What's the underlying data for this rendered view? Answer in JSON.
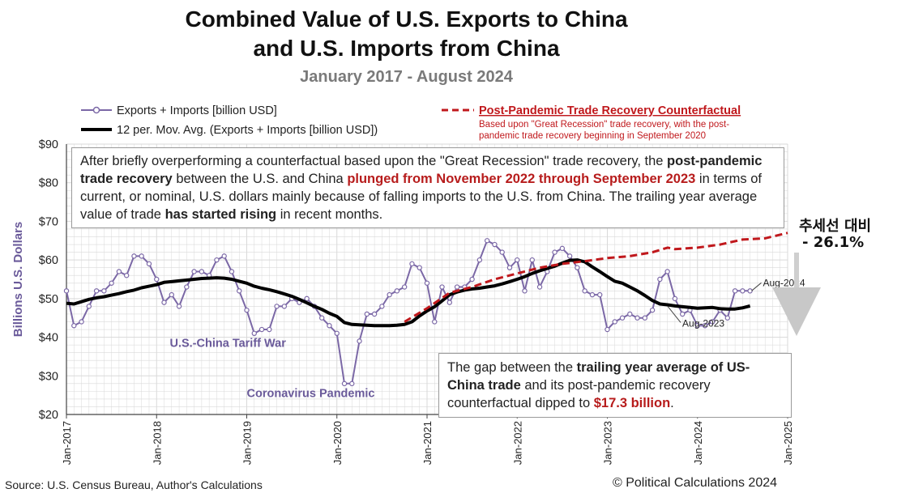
{
  "title": {
    "line1": "Combined Value of U.S. Exports to China",
    "line2": "and U.S. Imports from China",
    "line3": "January 2017 - August 2024"
  },
  "colors": {
    "series": "#7b68a6",
    "mavg": "#000000",
    "counterfactual": "#c0181c",
    "grid": "#d9d9d9"
  },
  "legend": {
    "series_label": "Exports + Imports [billion USD]",
    "mavg_label": "12 per. Mov. Avg. (Exports + Imports [billion USD])",
    "cf_label": "Post-Pandemic Trade Recovery Counterfactual",
    "cf_note1": "Based upon \"Great Recession\" trade recovery, with the post-",
    "cf_note2": "pandemic trade recovery beginning in September 2020"
  },
  "note1": {
    "p1": "After briefly overperforming a counterfactual based upon the \"Great Recession\" trade recovery, the ",
    "b1": "post-pandemic trade recovery",
    "p2": " between the U.S. and China ",
    "r1": "plunged from November 2022 through September 2023",
    "p3": " in terms of current, or nominal, U.S. dollars mainly because of falling imports to the U.S. from China. The trailing year average value of trade ",
    "b2": "has started rising",
    "p4": " in recent months."
  },
  "note2": {
    "p1": "The gap between the ",
    "b1": "trailing year average of US-China trade",
    "p2": " and its post-pandemic recovery counterfactual dipped to ",
    "r1": "$17.3 billion",
    "p3": "."
  },
  "korean": {
    "line1": "추세선 대비",
    "line2": "- 26.1%"
  },
  "source": "Source: U.S. Census Bureau, Author's Calculations",
  "copyright": "© Political Calculations 2024",
  "chart_data": {
    "type": "line",
    "title": "Combined Value of U.S. Exports to China and U.S. Imports from China",
    "subtitle": "January 2017 - August 2024",
    "xlabel": "",
    "ylabel": "Billions U.S. Dollars",
    "ylim": [
      20,
      90
    ],
    "yticks": [
      20,
      30,
      40,
      50,
      60,
      70,
      80,
      90
    ],
    "ytick_labels": [
      "$20",
      "$30",
      "$40",
      "$50",
      "$60",
      "$70",
      "$80",
      "$90"
    ],
    "xlim": [
      2017.0,
      2025.0
    ],
    "xticks": [
      2017,
      2018,
      2019,
      2020,
      2021,
      2022,
      2023,
      2024,
      2025
    ],
    "xtick_labels": [
      "Jan-2017",
      "Jan-2018",
      "Jan-2019",
      "Jan-2020",
      "Jan-2021",
      "Jan-2022",
      "Jan-2023",
      "Jan-2024",
      "Jan-2025"
    ],
    "grid": true,
    "series": [
      {
        "name": "Exports + Imports [billion USD]",
        "style": "line-markers",
        "x_start": 2017.0,
        "x_step": 0.08333,
        "values": [
          52,
          43,
          44,
          48,
          52,
          52,
          54,
          57,
          56,
          61,
          61,
          59,
          55,
          49,
          51,
          48,
          53,
          57,
          57,
          56,
          60,
          61,
          57,
          52,
          47,
          41,
          42,
          42,
          48,
          48,
          50,
          49,
          50,
          48,
          45,
          43,
          41,
          28,
          28,
          39,
          46,
          46,
          48,
          51,
          52,
          53,
          59,
          58,
          54,
          44,
          53,
          49,
          53,
          53,
          55,
          60,
          65,
          64,
          62,
          58,
          60,
          52,
          60,
          53,
          57,
          62,
          63,
          61,
          58,
          52,
          51,
          51,
          42,
          44,
          45,
          46,
          45,
          45,
          47,
          55,
          57,
          50,
          46,
          47,
          43,
          43,
          44,
          47,
          45,
          52,
          52,
          52
        ]
      },
      {
        "name": "12 per. Mov. Avg. (Exports + Imports [billion USD])",
        "style": "thick-line",
        "x_start": 2017.0,
        "x_step": 0.08333,
        "values": [
          48.8,
          48.6,
          49.2,
          49.8,
          50.2,
          50.5,
          50.9,
          51.3,
          51.8,
          52.2,
          52.8,
          53.2,
          53.6,
          54.2,
          54.4,
          54.6,
          54.8,
          55.0,
          55.2,
          55.3,
          55.4,
          55.3,
          55.0,
          54.5,
          54.0,
          53.2,
          52.7,
          52.3,
          51.8,
          51.2,
          50.6,
          49.8,
          48.9,
          48.0,
          47.2,
          46.2,
          45.4,
          43.8,
          43.3,
          43.2,
          43.1,
          43.0,
          43.0,
          43.0,
          43.1,
          43.3,
          44.0,
          45.5,
          46.8,
          47.9,
          49.4,
          51.0,
          51.7,
          52.2,
          52.5,
          52.7,
          53.0,
          53.3,
          53.8,
          54.4,
          55.0,
          55.7,
          56.5,
          57.2,
          57.8,
          58.4,
          59.2,
          59.9,
          60.0,
          59.5,
          58.2,
          57.0,
          55.7,
          54.5,
          54.0,
          53.0,
          52.0,
          50.8,
          49.5,
          48.6,
          48.4,
          48.1,
          47.9,
          47.7,
          47.5,
          47.6,
          47.7,
          47.4,
          47.3,
          47.3,
          47.6,
          48.1
        ]
      },
      {
        "name": "Post-Pandemic Trade Recovery Counterfactual",
        "style": "dashed",
        "points": [
          [
            2020.75,
            44.0
          ],
          [
            2021.0,
            47.5
          ],
          [
            2021.25,
            51.5
          ],
          [
            2021.5,
            53.0
          ],
          [
            2021.75,
            55.0
          ],
          [
            2022.0,
            56.5
          ],
          [
            2022.25,
            58.0
          ],
          [
            2022.5,
            59.0
          ],
          [
            2022.75,
            59.7
          ],
          [
            2023.0,
            60.5
          ],
          [
            2023.25,
            61.0
          ],
          [
            2023.5,
            62.0
          ],
          [
            2023.67,
            63.2
          ],
          [
            2023.75,
            62.8
          ],
          [
            2024.0,
            63.2
          ],
          [
            2024.25,
            64.0
          ],
          [
            2024.5,
            65.3
          ],
          [
            2024.75,
            65.6
          ],
          [
            2025.0,
            67.0
          ]
        ]
      }
    ],
    "annotations": [
      {
        "text": "U.S.-China Tariff War",
        "x": 2019.15,
        "y": 37.5
      },
      {
        "text": "Coronavirus Pandemic",
        "x": 2019.8,
        "y": 24.5
      },
      {
        "text": "Aug-2024",
        "x": 2024.6,
        "y": 52
      },
      {
        "text": "Aug-2023",
        "x": 2023.67,
        "y": 48
      }
    ]
  }
}
